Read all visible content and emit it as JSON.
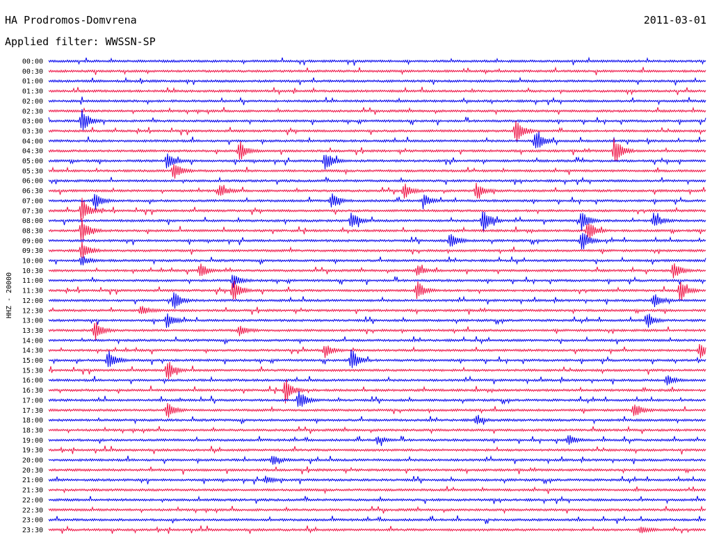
{
  "header": {
    "station": "HA Prodromos-Domvrena",
    "date": "2011-03-01",
    "filter": "Applied filter: WWSSN-SP"
  },
  "channel_label": "HHZ - 20000",
  "colors": {
    "even_trace": "#0000ee",
    "odd_trace": "#ee1144",
    "text": "#000000"
  },
  "chart_data": {
    "type": "helicorder",
    "title": "HA Prodromos-Domvrena",
    "date": "2011-03-01",
    "filter": "WWSSN-SP",
    "ylabel": "HHZ - 20000",
    "row_interval_minutes": 30,
    "row_labels": [
      "00:00",
      "00:30",
      "01:00",
      "01:30",
      "02:00",
      "02:30",
      "03:00",
      "03:30",
      "04:00",
      "04:30",
      "05:00",
      "05:30",
      "06:00",
      "06:30",
      "07:00",
      "07:30",
      "08:00",
      "08:30",
      "09:00",
      "09:30",
      "10:00",
      "10:30",
      "11:00",
      "11:30",
      "12:00",
      "12:30",
      "13:00",
      "13:30",
      "14:00",
      "14:30",
      "15:00",
      "15:30",
      "16:00",
      "16:30",
      "17:00",
      "17:30",
      "18:00",
      "18:30",
      "19:00",
      "19:30",
      "20:00",
      "20:30",
      "21:00",
      "21:30",
      "22:00",
      "22:30",
      "23:00",
      "23:30"
    ],
    "trace_colors": [
      "blue",
      "red"
    ],
    "events": [
      {
        "row": 6,
        "t": 0.05,
        "amp": 20
      },
      {
        "row": 7,
        "t": 0.71,
        "amp": 22
      },
      {
        "row": 8,
        "t": 0.74,
        "amp": 18
      },
      {
        "row": 9,
        "t": 0.29,
        "amp": 14
      },
      {
        "row": 9,
        "t": 0.86,
        "amp": 22
      },
      {
        "row": 10,
        "t": 0.18,
        "amp": 14
      },
      {
        "row": 10,
        "t": 0.42,
        "amp": 16
      },
      {
        "row": 11,
        "t": 0.19,
        "amp": 14
      },
      {
        "row": 13,
        "t": 0.26,
        "amp": 10
      },
      {
        "row": 13,
        "t": 0.54,
        "amp": 12
      },
      {
        "row": 13,
        "t": 0.65,
        "amp": 12
      },
      {
        "row": 14,
        "t": 0.07,
        "amp": 14
      },
      {
        "row": 14,
        "t": 0.43,
        "amp": 12
      },
      {
        "row": 14,
        "t": 0.57,
        "amp": 10
      },
      {
        "row": 15,
        "t": 0.05,
        "amp": 20
      },
      {
        "row": 16,
        "t": 0.46,
        "amp": 14
      },
      {
        "row": 16,
        "t": 0.66,
        "amp": 22
      },
      {
        "row": 16,
        "t": 0.81,
        "amp": 16
      },
      {
        "row": 16,
        "t": 0.92,
        "amp": 12
      },
      {
        "row": 17,
        "t": 0.05,
        "amp": 18
      },
      {
        "row": 17,
        "t": 0.82,
        "amp": 16
      },
      {
        "row": 18,
        "t": 0.61,
        "amp": 14
      },
      {
        "row": 18,
        "t": 0.81,
        "amp": 18
      },
      {
        "row": 19,
        "t": 0.05,
        "amp": 16
      },
      {
        "row": 20,
        "t": 0.05,
        "amp": 8
      },
      {
        "row": 21,
        "t": 0.23,
        "amp": 12
      },
      {
        "row": 21,
        "t": 0.56,
        "amp": 8
      },
      {
        "row": 21,
        "t": 0.95,
        "amp": 14
      },
      {
        "row": 22,
        "t": 0.28,
        "amp": 10
      },
      {
        "row": 23,
        "t": 0.28,
        "amp": 18
      },
      {
        "row": 23,
        "t": 0.56,
        "amp": 16
      },
      {
        "row": 23,
        "t": 0.96,
        "amp": 18
      },
      {
        "row": 24,
        "t": 0.19,
        "amp": 14
      },
      {
        "row": 24,
        "t": 0.92,
        "amp": 12
      },
      {
        "row": 25,
        "t": 0.14,
        "amp": 8
      },
      {
        "row": 26,
        "t": 0.18,
        "amp": 12
      },
      {
        "row": 26,
        "t": 0.91,
        "amp": 12
      },
      {
        "row": 27,
        "t": 0.07,
        "amp": 16
      },
      {
        "row": 27,
        "t": 0.29,
        "amp": 8
      },
      {
        "row": 29,
        "t": 0.42,
        "amp": 10
      },
      {
        "row": 29,
        "t": 0.99,
        "amp": 12
      },
      {
        "row": 30,
        "t": 0.09,
        "amp": 16
      },
      {
        "row": 30,
        "t": 0.46,
        "amp": 18
      },
      {
        "row": 31,
        "t": 0.18,
        "amp": 16
      },
      {
        "row": 32,
        "t": 0.94,
        "amp": 8
      },
      {
        "row": 33,
        "t": 0.36,
        "amp": 18
      },
      {
        "row": 34,
        "t": 0.38,
        "amp": 16
      },
      {
        "row": 35,
        "t": 0.18,
        "amp": 12
      },
      {
        "row": 35,
        "t": 0.89,
        "amp": 12
      },
      {
        "row": 36,
        "t": 0.65,
        "amp": 6
      },
      {
        "row": 38,
        "t": 0.5,
        "amp": 6
      },
      {
        "row": 38,
        "t": 0.79,
        "amp": 8
      },
      {
        "row": 40,
        "t": 0.34,
        "amp": 8
      },
      {
        "row": 42,
        "t": 0.33,
        "amp": 6
      },
      {
        "row": 47,
        "t": 0.9,
        "amp": 6
      }
    ]
  }
}
